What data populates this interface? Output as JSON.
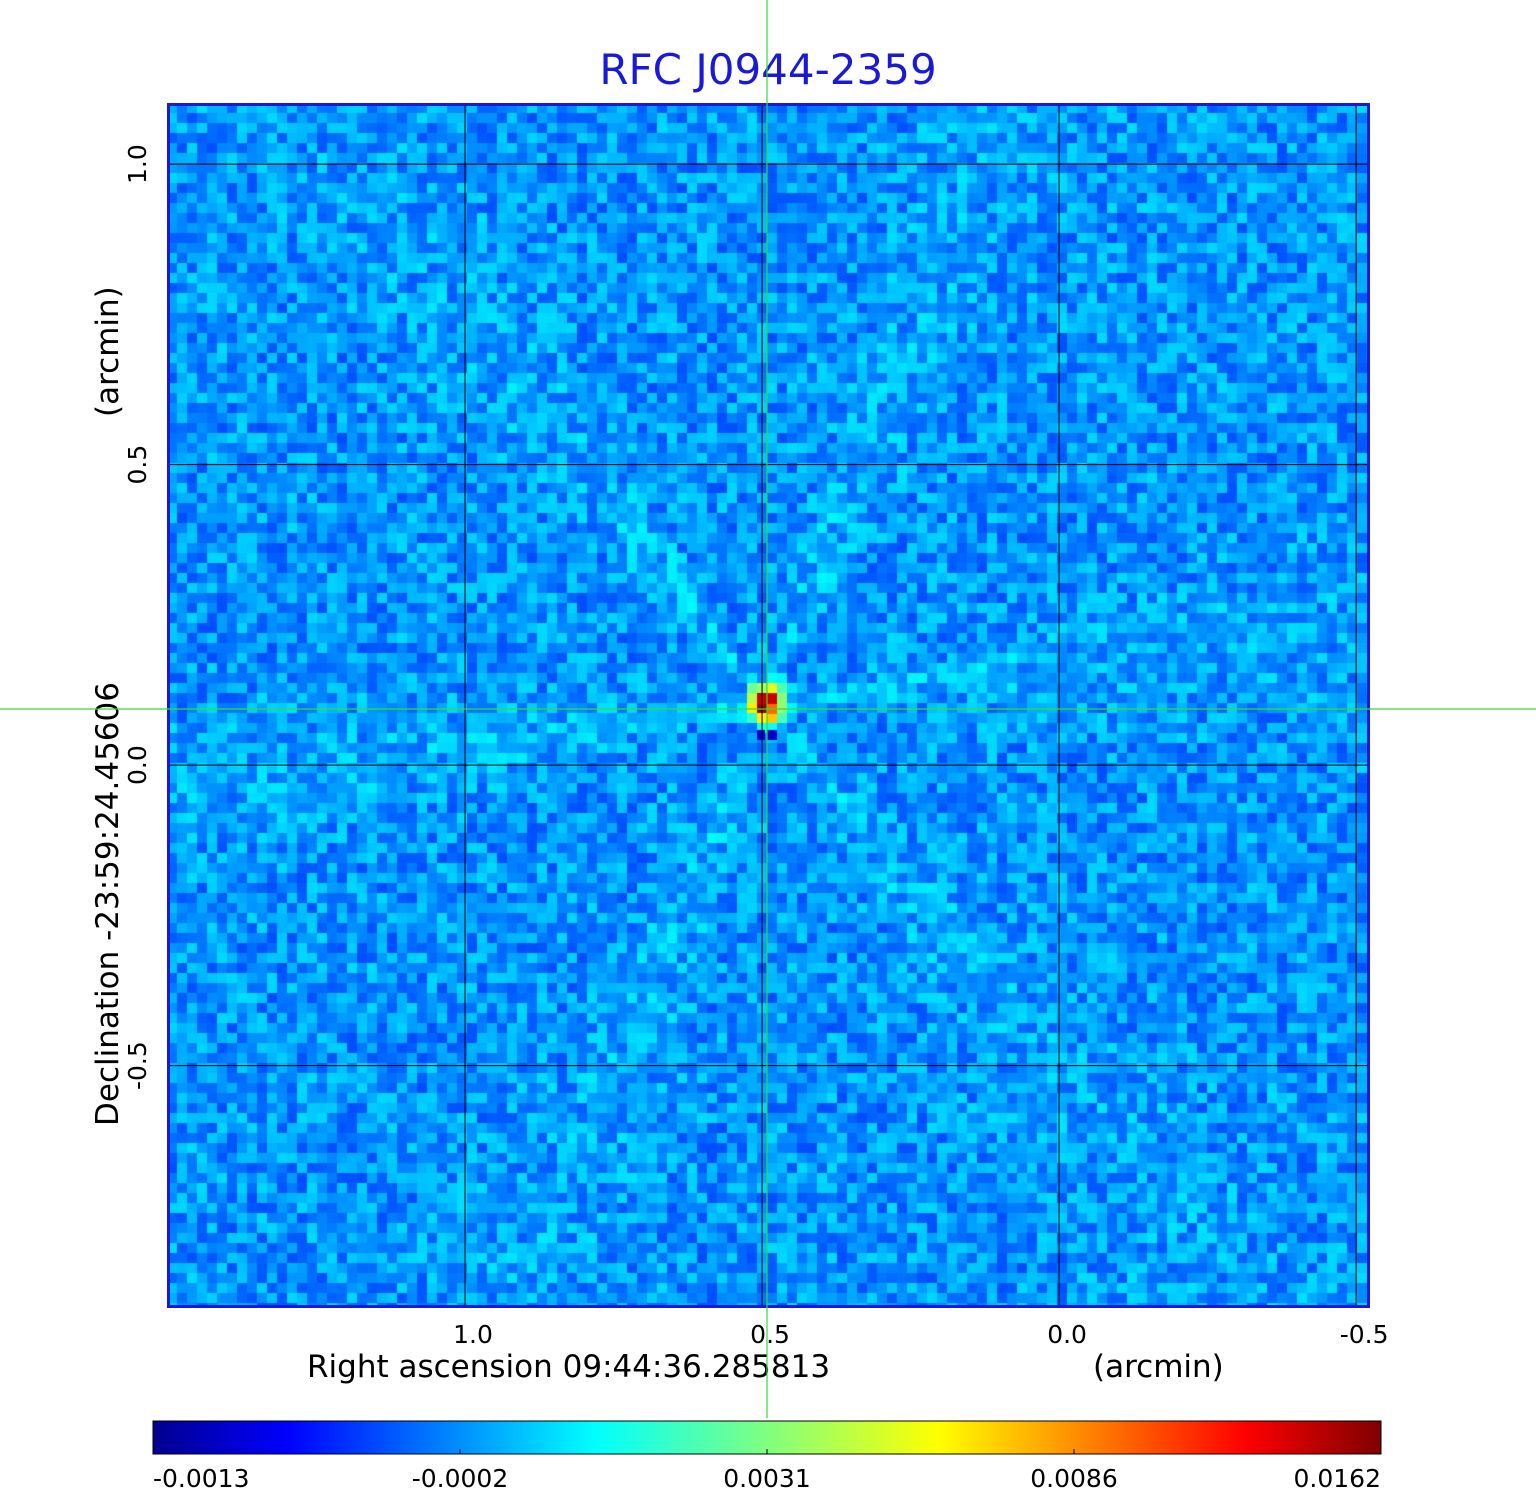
{
  "title": "RFC J0944-2359",
  "colors": {
    "title": "#1a1ad6",
    "frame": "#1a1ad6",
    "grid": "#000000",
    "crosshair": "#33dd33",
    "colormap": "jet"
  },
  "chart_data": {
    "type": "heatmap",
    "title": "RFC J0944-2359",
    "xlabel": "Right ascension  09:44:36.285813",
    "xunit": "(arcmin)",
    "ylabel": "Declination  -23:59:24.45606",
    "yunit": "(arcmin)",
    "x_ticks": [
      "1.0",
      "0.5",
      "0.0",
      "-0.5"
    ],
    "y_ticks": [
      "1.0",
      "0.5",
      "0.0",
      "-0.5"
    ],
    "xlim": [
      1.5,
      -0.52
    ],
    "ylim": [
      -0.9,
      1.1
    ],
    "x_tick_values": [
      1.0,
      0.5,
      0.0,
      -0.5
    ],
    "y_tick_values": [
      1.0,
      0.5,
      0.0,
      -0.5
    ],
    "grid": true,
    "source_peak": {
      "ra_offset": 0.49,
      "dec_offset": 0.1,
      "value": 0.0162
    },
    "colorbar": {
      "min": -0.0013,
      "max": 0.0162,
      "tick_labels": [
        "-0.0013",
        "-0.0002",
        "0.0031",
        "0.0086",
        "0.0162"
      ],
      "tick_fractions": [
        0.0,
        0.25,
        0.5,
        0.75,
        1.0
      ]
    }
  }
}
